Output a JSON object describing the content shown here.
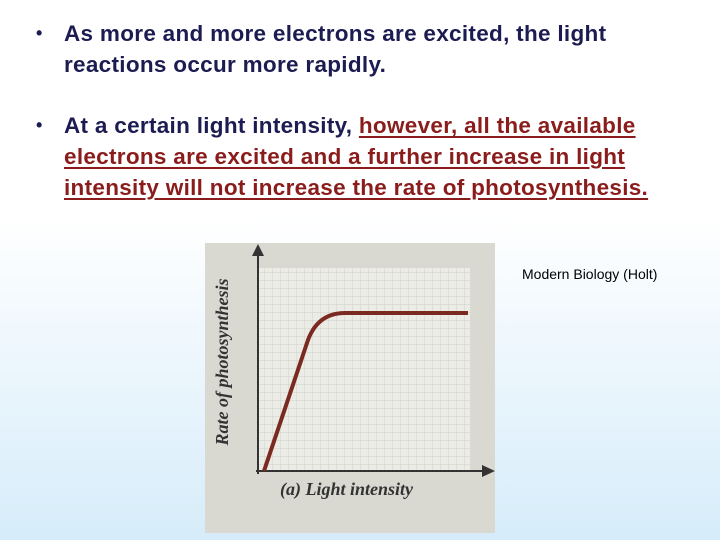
{
  "bullets": [
    {
      "text": "As more and more electrons are excited, the light reactions occur more rapidly."
    },
    {
      "text": "At a certain light intensity, ",
      "emphasis": "however, all the available electrons are excited and a further increase in light intensity will not increase the rate of photosynthesis."
    }
  ],
  "figure": {
    "y_label": "Rate of photosynthesis",
    "x_label": "(a) Light intensity",
    "credit": "Modern Biology (Holt)"
  }
}
